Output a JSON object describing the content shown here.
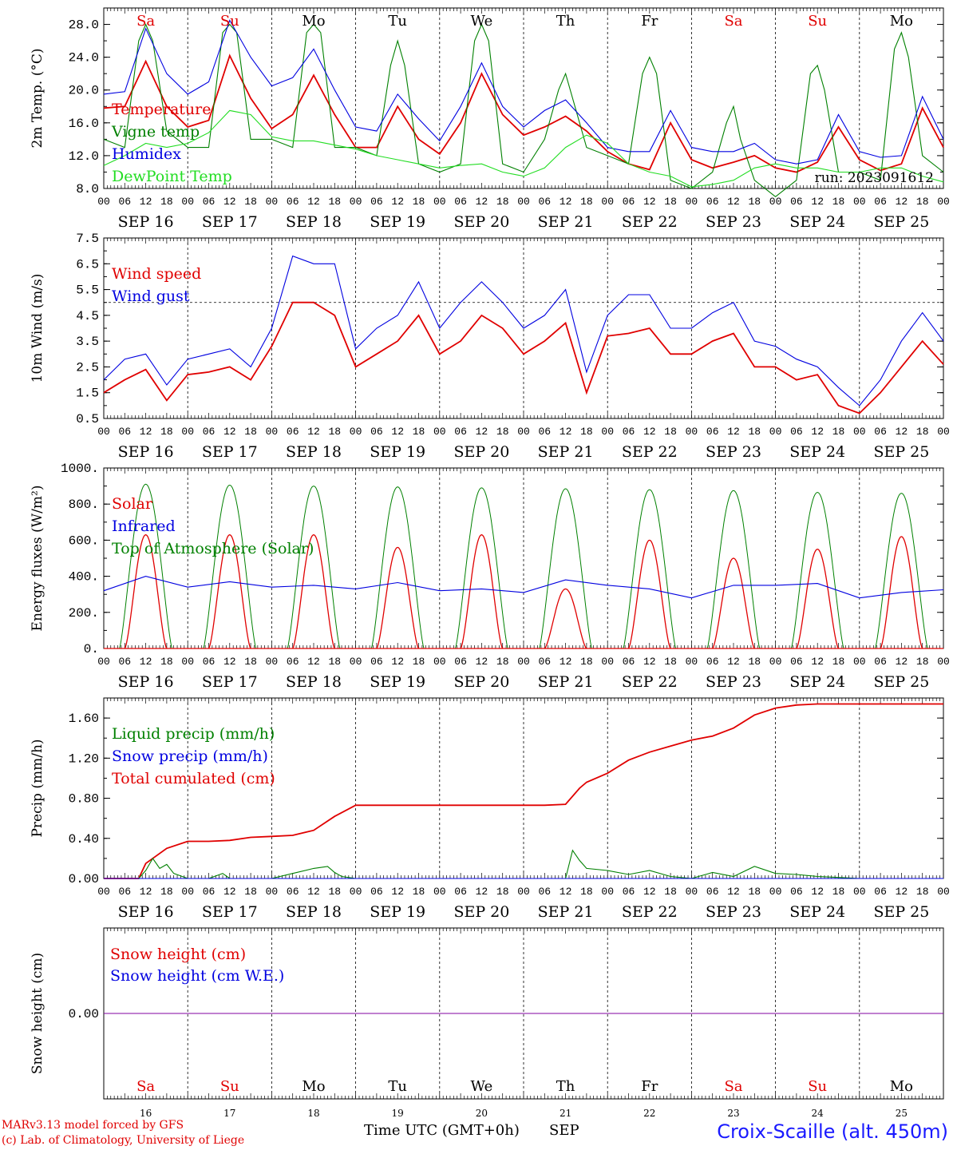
{
  "colors": {
    "red": "#e00000",
    "green": "#008000",
    "blue": "#0000e0",
    "lightgreen": "#22dd22",
    "weekend": "#e00000",
    "weekday": "#000000",
    "purple": "#8000a0"
  },
  "days": [
    {
      "abbr": "Sa",
      "date": "SEP 16",
      "num": "16",
      "weekend": true
    },
    {
      "abbr": "Su",
      "date": "SEP 17",
      "num": "17",
      "weekend": true
    },
    {
      "abbr": "Mo",
      "date": "SEP 18",
      "num": "18",
      "weekend": false
    },
    {
      "abbr": "Tu",
      "date": "SEP 19",
      "num": "19",
      "weekend": false
    },
    {
      "abbr": "We",
      "date": "SEP 20",
      "num": "20",
      "weekend": false
    },
    {
      "abbr": "Th",
      "date": "SEP 21",
      "num": "21",
      "weekend": false
    },
    {
      "abbr": "Fr",
      "date": "SEP 22",
      "num": "22",
      "weekend": false
    },
    {
      "abbr": "Sa",
      "date": "SEP 23",
      "num": "23",
      "weekend": true
    },
    {
      "abbr": "Su",
      "date": "SEP 24",
      "num": "24",
      "weekend": true
    },
    {
      "abbr": "Mo",
      "date": "SEP 25",
      "num": "25",
      "weekend": false
    }
  ],
  "hour_ticks": [
    "00",
    "06",
    "12",
    "18"
  ],
  "final_hour": "00",
  "footer": {
    "model": "MARv3.13 model forced by GFS",
    "lab": "(c) Lab. of Climatology, University of Liege",
    "xlabel": "Time UTC (GMT+0h)",
    "month": "SEP",
    "station": "Croix-Scaille (alt. 450m)"
  },
  "chart_data": [
    {
      "type": "line",
      "ylabel": "2m Temp. (°C)",
      "ylim": [
        8,
        30
      ],
      "yticks": [
        "8.0",
        "12.0",
        "16.0",
        "20.0",
        "24.0",
        "28.0"
      ],
      "ytick_values": [
        8,
        12,
        16,
        20,
        24,
        28
      ],
      "show_day_names": true,
      "annotation": "run: 2023091612",
      "x_unit": "hours since SEP 16 00 UTC",
      "series": [
        {
          "name": "Temperature",
          "color": "red",
          "x": [
            0,
            6,
            12,
            18,
            24,
            30,
            36,
            42,
            48,
            54,
            60,
            66,
            72,
            78,
            84,
            90,
            96,
            102,
            108,
            114,
            120,
            126,
            132,
            138,
            144,
            150,
            156,
            162,
            168,
            174,
            180,
            186,
            192,
            198,
            204,
            210,
            216,
            222,
            228,
            234,
            240
          ],
          "values": [
            17.8,
            18,
            23.5,
            18,
            15.5,
            16.3,
            24.2,
            19,
            15.3,
            17,
            21.8,
            17,
            13,
            13,
            18,
            14,
            12.2,
            16,
            22,
            17,
            14.5,
            15.5,
            16.8,
            15,
            12.5,
            11,
            10.3,
            16,
            11.5,
            10.5,
            11.2,
            12,
            10.5,
            10,
            11.2,
            15.5,
            11.5,
            10.2,
            11,
            17.8,
            13
          ]
        },
        {
          "name": "Vigne temp",
          "color": "green",
          "x": [
            0,
            6,
            10,
            12,
            14,
            18,
            24,
            30,
            34,
            36,
            38,
            42,
            48,
            54,
            58,
            60,
            62,
            66,
            72,
            78,
            82,
            84,
            86,
            90,
            96,
            102,
            106,
            108,
            110,
            114,
            120,
            126,
            130,
            132,
            134,
            138,
            144,
            150,
            154,
            156,
            158,
            162,
            168,
            174,
            178,
            180,
            182,
            186,
            192,
            198,
            202,
            204,
            206,
            210,
            216,
            222,
            226,
            228,
            230,
            234,
            240
          ],
          "values": [
            14,
            13,
            26,
            28,
            26,
            15,
            13,
            13,
            27,
            28,
            27,
            14,
            14,
            13,
            27,
            28,
            27,
            13,
            13,
            12,
            23,
            26,
            23,
            11,
            10,
            11,
            26,
            28,
            26,
            11,
            10,
            14,
            20,
            22,
            19,
            13,
            12,
            11,
            22,
            24,
            22,
            9,
            8,
            10,
            16,
            18,
            14,
            9,
            7,
            9,
            22,
            23,
            20,
            10,
            10,
            9,
            25,
            27,
            24,
            12,
            10
          ]
        },
        {
          "name": "Humidex",
          "color": "blue",
          "x": [
            0,
            6,
            12,
            18,
            24,
            30,
            36,
            42,
            48,
            54,
            60,
            66,
            72,
            78,
            84,
            90,
            96,
            102,
            108,
            114,
            120,
            126,
            132,
            138,
            144,
            150,
            156,
            162,
            168,
            174,
            180,
            186,
            192,
            198,
            204,
            210,
            216,
            222,
            228,
            234,
            240
          ],
          "values": [
            19.5,
            19.8,
            27.5,
            22,
            19.5,
            21,
            28.5,
            24,
            20.5,
            21.5,
            25,
            20,
            15.5,
            15,
            19.5,
            16.5,
            13.8,
            18,
            23.3,
            18,
            15.5,
            17.5,
            18.8,
            16,
            13,
            12.5,
            12.5,
            17.5,
            13,
            12.5,
            12.5,
            13.5,
            11.5,
            11,
            11.5,
            17,
            12.5,
            11.8,
            12,
            19.2,
            14
          ]
        },
        {
          "name": "DewPoint Temp",
          "color": "lightgreen",
          "x": [
            0,
            6,
            12,
            18,
            24,
            30,
            36,
            42,
            48,
            54,
            60,
            66,
            72,
            78,
            84,
            90,
            96,
            102,
            108,
            114,
            120,
            126,
            132,
            138,
            144,
            150,
            156,
            162,
            168,
            174,
            180,
            186,
            192,
            198,
            204,
            210,
            216,
            222,
            228,
            234,
            240
          ],
          "values": [
            10.8,
            12,
            13.5,
            13,
            13.5,
            14.8,
            17.5,
            17,
            14.3,
            13.8,
            13.8,
            13.3,
            12.8,
            12,
            11.5,
            11,
            10.5,
            10.8,
            11,
            10,
            9.5,
            10.5,
            13,
            14.5,
            13.5,
            11,
            10,
            9.5,
            8.2,
            8.5,
            9,
            10.5,
            11,
            10.5,
            10.5,
            10,
            10,
            10.5,
            10.5,
            9.5,
            8.8
          ]
        }
      ],
      "legend": [
        {
          "label": "Temperature",
          "color": "red"
        },
        {
          "label": "Vigne temp",
          "color": "green"
        },
        {
          "label": "Humidex",
          "color": "blue"
        },
        {
          "label": "DewPoint Temp",
          "color": "lightgreen"
        }
      ]
    },
    {
      "type": "line",
      "ylabel": "10m Wind (m/s)",
      "ylim": [
        0.5,
        7.5
      ],
      "yticks": [
        "0.5",
        "1.5",
        "2.5",
        "3.5",
        "4.5",
        "5.5",
        "6.5",
        "7.5"
      ],
      "ytick_values": [
        0.5,
        1.5,
        2.5,
        3.5,
        4.5,
        5.5,
        6.5,
        7.5
      ],
      "hline": 5,
      "show_day_names": false,
      "x_unit": "hours since SEP 16 00 UTC",
      "series": [
        {
          "name": "Wind speed",
          "color": "red",
          "x": [
            0,
            6,
            12,
            18,
            24,
            30,
            36,
            42,
            48,
            54,
            60,
            66,
            72,
            78,
            84,
            90,
            96,
            102,
            108,
            114,
            120,
            126,
            132,
            138,
            144,
            150,
            156,
            162,
            168,
            174,
            180,
            186,
            192,
            198,
            204,
            210,
            216,
            222,
            228,
            234,
            240
          ],
          "values": [
            1.5,
            2,
            2.4,
            1.2,
            2.2,
            2.3,
            2.5,
            2,
            3.3,
            5,
            5,
            4.5,
            2.5,
            3,
            3.5,
            4.5,
            3,
            3.5,
            4.5,
            4,
            3,
            3.5,
            4.2,
            1.5,
            3.7,
            3.8,
            4,
            3,
            3,
            3.5,
            3.8,
            2.5,
            2.5,
            2,
            2.2,
            1,
            0.7,
            1.5,
            2.5,
            3.5,
            2.6
          ]
        },
        {
          "name": "Wind gust",
          "color": "blue",
          "x": [
            0,
            6,
            12,
            18,
            24,
            30,
            36,
            42,
            48,
            54,
            60,
            66,
            72,
            78,
            84,
            90,
            96,
            102,
            108,
            114,
            120,
            126,
            132,
            138,
            144,
            150,
            156,
            162,
            168,
            174,
            180,
            186,
            192,
            198,
            204,
            210,
            216,
            222,
            228,
            234,
            240
          ],
          "values": [
            2,
            2.8,
            3,
            1.8,
            2.8,
            3,
            3.2,
            2.5,
            4,
            6.8,
            6.5,
            6.5,
            3.2,
            4,
            4.5,
            5.8,
            4,
            5,
            5.8,
            5,
            4,
            4.5,
            5.5,
            2.3,
            4.5,
            5.3,
            5.3,
            4,
            4,
            4.6,
            5,
            3.5,
            3.3,
            2.8,
            2.5,
            1.7,
            1,
            2,
            3.5,
            4.6,
            3.5
          ]
        }
      ],
      "legend": [
        {
          "label": "Wind speed",
          "color": "red"
        },
        {
          "label": "Wind gust",
          "color": "blue"
        }
      ]
    },
    {
      "type": "line",
      "ylabel": "Energy fluxes (W/m²)",
      "ylim": [
        0,
        1000
      ],
      "yticks": [
        "0.",
        "200.",
        "400.",
        "600.",
        "800.",
        "1000."
      ],
      "ytick_values": [
        0,
        200,
        400,
        600,
        800,
        1000
      ],
      "show_day_names": false,
      "x_unit": "hours since SEP 16 00 UTC",
      "daily_peaks": {
        "top_of_atmosphere": [
          910,
          905,
          900,
          895,
          890,
          885,
          880,
          875,
          865,
          860
        ],
        "solar": [
          630,
          630,
          630,
          560,
          630,
          330,
          600,
          500,
          550,
          620
        ]
      },
      "series": [
        {
          "name": "Infrared",
          "color": "blue",
          "x": [
            0,
            12,
            24,
            36,
            48,
            60,
            72,
            84,
            96,
            108,
            120,
            132,
            144,
            156,
            168,
            180,
            192,
            204,
            216,
            228,
            240
          ],
          "values": [
            320,
            400,
            340,
            370,
            340,
            350,
            330,
            365,
            320,
            330,
            310,
            380,
            350,
            330,
            280,
            350,
            350,
            360,
            280,
            310,
            325
          ]
        }
      ],
      "legend": [
        {
          "label": "Solar",
          "color": "red"
        },
        {
          "label": "Infrared",
          "color": "blue"
        },
        {
          "label": "Top of Atmosphere (Solar)",
          "color": "green"
        }
      ]
    },
    {
      "type": "line",
      "ylabel": "Precip (mm/h)",
      "ylim": [
        0,
        1.8
      ],
      "yticks": [
        "0.00",
        "0.40",
        "0.80",
        "1.20",
        "1.60"
      ],
      "ytick_values": [
        0,
        0.4,
        0.8,
        1.2,
        1.6
      ],
      "show_day_names": false,
      "x_unit": "hours since SEP 16 00 UTC",
      "series": [
        {
          "name": "Total cumulated (cm)",
          "color": "red",
          "x": [
            0,
            10,
            12,
            18,
            24,
            30,
            36,
            42,
            48,
            54,
            60,
            66,
            72,
            78,
            84,
            90,
            96,
            102,
            108,
            114,
            120,
            126,
            132,
            136,
            138,
            144,
            150,
            156,
            162,
            168,
            174,
            180,
            186,
            192,
            198,
            204,
            210,
            216,
            222,
            228,
            234,
            240
          ],
          "values": [
            0,
            0,
            0.15,
            0.3,
            0.37,
            0.37,
            0.38,
            0.41,
            0.42,
            0.43,
            0.48,
            0.62,
            0.73,
            0.73,
            0.73,
            0.73,
            0.73,
            0.73,
            0.73,
            0.73,
            0.73,
            0.73,
            0.74,
            0.9,
            0.96,
            1.05,
            1.18,
            1.26,
            1.32,
            1.38,
            1.42,
            1.5,
            1.63,
            1.7,
            1.73,
            1.74,
            1.74,
            1.74,
            1.74,
            1.74,
            1.74,
            1.74
          ]
        },
        {
          "name": "Liquid precip (mm/h)",
          "color": "green",
          "x": [
            0,
            10,
            12,
            14,
            16,
            18,
            20,
            24,
            30,
            34,
            36,
            48,
            54,
            60,
            64,
            66,
            68,
            72,
            120,
            132,
            134,
            136,
            138,
            144,
            150,
            156,
            162,
            168,
            174,
            180,
            186,
            192,
            198,
            204,
            210,
            216,
            240
          ],
          "values": [
            0,
            0,
            0.08,
            0.2,
            0.1,
            0.14,
            0.05,
            0,
            0,
            0.05,
            0,
            0,
            0.05,
            0.1,
            0.12,
            0.06,
            0.02,
            0,
            0,
            0,
            0.28,
            0.18,
            0.1,
            0.08,
            0.04,
            0.08,
            0.02,
            0,
            0.06,
            0.02,
            0.12,
            0.05,
            0.04,
            0.02,
            0.01,
            0,
            0
          ]
        },
        {
          "name": "Snow precip (mm/h)",
          "color": "blue",
          "x": [
            0,
            240
          ],
          "values": [
            0,
            0
          ]
        }
      ],
      "legend": [
        {
          "label": "Liquid precip (mm/h)",
          "color": "green"
        },
        {
          "label": "Snow precip (mm/h)",
          "color": "blue"
        },
        {
          "label": "Total cumulated (cm)",
          "color": "red"
        }
      ]
    },
    {
      "type": "line",
      "ylabel": "Snow height (cm)",
      "ylim": [
        -1,
        1
      ],
      "yticks": [
        "0.00"
      ],
      "ytick_values": [
        0
      ],
      "show_day_names": false,
      "x_unit": "hours since SEP 16 00 UTC",
      "series": [
        {
          "name": "Snow height (cm)",
          "color": "purple",
          "x": [
            0,
            240
          ],
          "values": [
            0,
            0
          ]
        }
      ],
      "legend": [
        {
          "label": "Snow height (cm)",
          "color": "red"
        },
        {
          "label": "Snow height (cm W.E.)",
          "color": "blue"
        }
      ]
    }
  ]
}
